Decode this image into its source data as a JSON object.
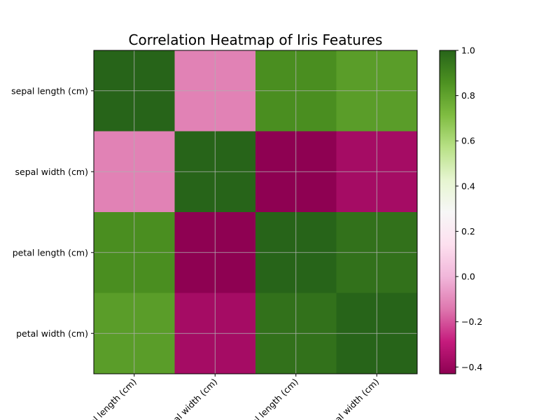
{
  "chart_data": {
    "type": "heatmap",
    "title": "Correlation Heatmap of Iris Features",
    "row_labels": [
      "sepal length (cm)",
      "sepal width (cm)",
      "petal length (cm)",
      "petal width (cm)"
    ],
    "col_labels": [
      "sepal length (cm)",
      "sepal width (cm)",
      "petal length (cm)",
      "petal width (cm)"
    ],
    "values": [
      [
        1.0,
        -0.12,
        0.87,
        0.82
      ],
      [
        -0.12,
        1.0,
        -0.43,
        -0.37
      ],
      [
        0.87,
        -0.43,
        1.0,
        0.96
      ],
      [
        0.82,
        -0.37,
        0.96,
        1.0
      ]
    ],
    "colormap": "PiYG",
    "vmin": -0.43,
    "vmax": 1.0,
    "colorbar_ticks": [
      1.0,
      0.8,
      0.6,
      0.4,
      0.2,
      0.0,
      -0.2,
      -0.4
    ],
    "colorbar_tick_labels": [
      "1.0",
      "0.8",
      "0.6",
      "0.4",
      "0.2",
      "0.0",
      "−0.2",
      "−0.4"
    ],
    "grid": true,
    "xtick_rotation": 45
  }
}
